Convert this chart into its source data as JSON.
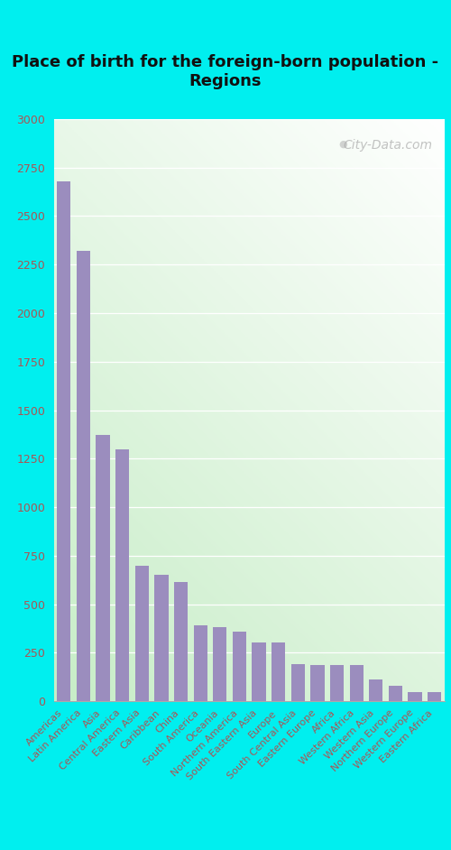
{
  "title": "Place of birth for the foreign-born population -\nRegions",
  "categories": [
    "Americas",
    "Latin America",
    "Asia",
    "Central America",
    "Eastern Asia",
    "Caribbean",
    "China",
    "South America",
    "Oceania",
    "Northern America",
    "South Eastern Asia",
    "Europe",
    "South Central Asia",
    "Eastern Europe",
    "Africa",
    "Western Africa",
    "Western Asia",
    "Northern Europe",
    "Western Europe",
    "Eastern Africa"
  ],
  "values": [
    2680,
    2320,
    1370,
    1300,
    700,
    650,
    615,
    390,
    380,
    360,
    305,
    305,
    190,
    185,
    185,
    185,
    110,
    80,
    45,
    45
  ],
  "bar_color": "#9b8dbe",
  "outer_bg_color": "#00efef",
  "ylim": [
    0,
    3000
  ],
  "yticks": [
    0,
    250,
    500,
    750,
    1000,
    1250,
    1500,
    1750,
    2000,
    2250,
    2500,
    2750,
    3000
  ],
  "title_fontsize": 13,
  "tick_label_fontsize": 8,
  "ytick_fontsize": 9,
  "tick_color": "#aa5555",
  "ytick_color": "#aa5555",
  "watermark": "City-Data.com",
  "watermark_fontsize": 10
}
